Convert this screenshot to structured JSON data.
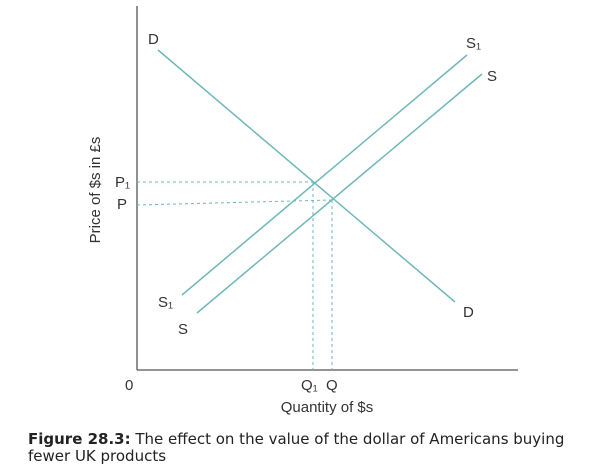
{
  "diagram": {
    "y_axis_label": "Price of $s in £s",
    "x_axis_label": "Quantity of $s",
    "origin_label": "0",
    "price_labels": {
      "p1": "P₁",
      "p": "P"
    },
    "quantity_labels": {
      "q1": "Q₁",
      "q": "Q"
    },
    "curves": {
      "demand": "D",
      "supply_original": "S",
      "supply_new": "S₁"
    },
    "colors": {
      "curve": "#6fb7b9",
      "axis": "#555555",
      "text": "#333333"
    }
  },
  "caption": {
    "label": "Figure 28.3:",
    "text": " The effect on the value of the dollar of Americans buying fewer UK products"
  }
}
